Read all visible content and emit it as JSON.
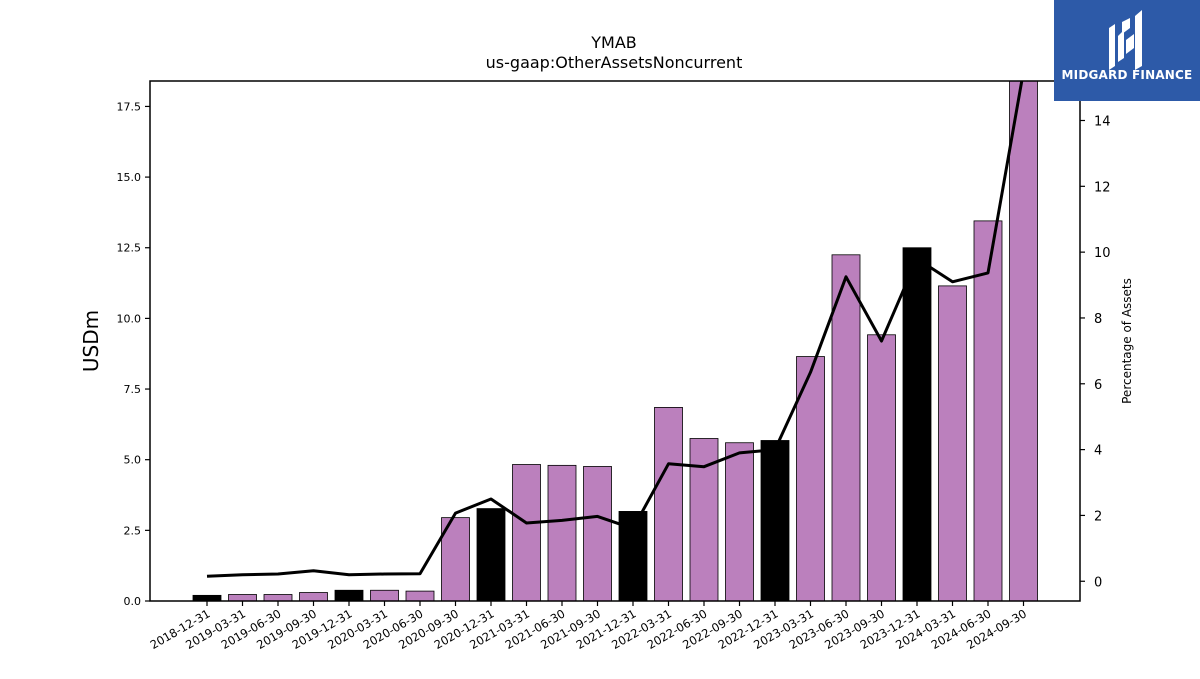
{
  "logo": {
    "text": "MIDGARD FINANCE",
    "background": "#2d5aa8",
    "icon": "midgard-logo-icon"
  },
  "chart_data": {
    "type": "bar",
    "title": "YMAB",
    "subtitle": "us-gaap:OtherAssetsNoncurrent",
    "ylabel": "USDm",
    "y2label": "Percentage of Assets",
    "ylim": [
      0,
      18.4
    ],
    "y2lim": [
      -0.6,
      15.2
    ],
    "yticks": [
      "0.0",
      "2.5",
      "5.0",
      "7.5",
      "10.0",
      "12.5",
      "15.0",
      "17.5"
    ],
    "y2ticks": [
      "0",
      "2",
      "4",
      "6",
      "8",
      "10",
      "12",
      "14"
    ],
    "categories": [
      "2018-12-31",
      "2019-03-31",
      "2019-06-30",
      "2019-09-30",
      "2019-12-31",
      "2020-03-31",
      "2020-06-30",
      "2020-09-30",
      "2020-12-31",
      "2021-03-31",
      "2021-06-30",
      "2021-09-30",
      "2021-12-31",
      "2022-03-31",
      "2022-06-30",
      "2022-09-30",
      "2022-12-31",
      "2023-03-31",
      "2023-06-30",
      "2023-09-30",
      "2023-12-31",
      "2024-03-31",
      "2024-06-30",
      "2024-09-30"
    ],
    "series": [
      {
        "type": "bar",
        "values": [
          0.2,
          0.23,
          0.23,
          0.3,
          0.38,
          0.38,
          0.35,
          2.95,
          3.27,
          4.83,
          4.8,
          4.76,
          3.17,
          6.85,
          5.75,
          5.6,
          5.68,
          8.65,
          12.25,
          9.42,
          12.5,
          11.15,
          13.45,
          18.7
        ],
        "colors": [
          "#000000",
          "#bb80bd",
          "#bb80bd",
          "#bb80bd",
          "#000000",
          "#bb80bd",
          "#bb80bd",
          "#bb80bd",
          "#000000",
          "#bb80bd",
          "#bb80bd",
          "#bb80bd",
          "#000000",
          "#bb80bd",
          "#bb80bd",
          "#bb80bd",
          "#000000",
          "#bb80bd",
          "#bb80bd",
          "#bb80bd",
          "#000000",
          "#bb80bd",
          "#bb80bd",
          "#bb80bd"
        ]
      },
      {
        "type": "line",
        "axis": "right",
        "values": [
          0.15,
          0.2,
          0.22,
          0.32,
          0.2,
          0.22,
          0.23,
          2.07,
          2.5,
          1.77,
          1.85,
          1.97,
          1.6,
          3.57,
          3.48,
          3.9,
          4.0,
          6.35,
          9.25,
          7.3,
          9.8,
          9.1,
          9.37,
          15.5
        ],
        "color": "#000000"
      }
    ],
    "colors": {
      "bar": "#bb80bd",
      "bar_highlight": "#000000",
      "line": "#000000"
    },
    "grid": false,
    "legend": "none"
  }
}
